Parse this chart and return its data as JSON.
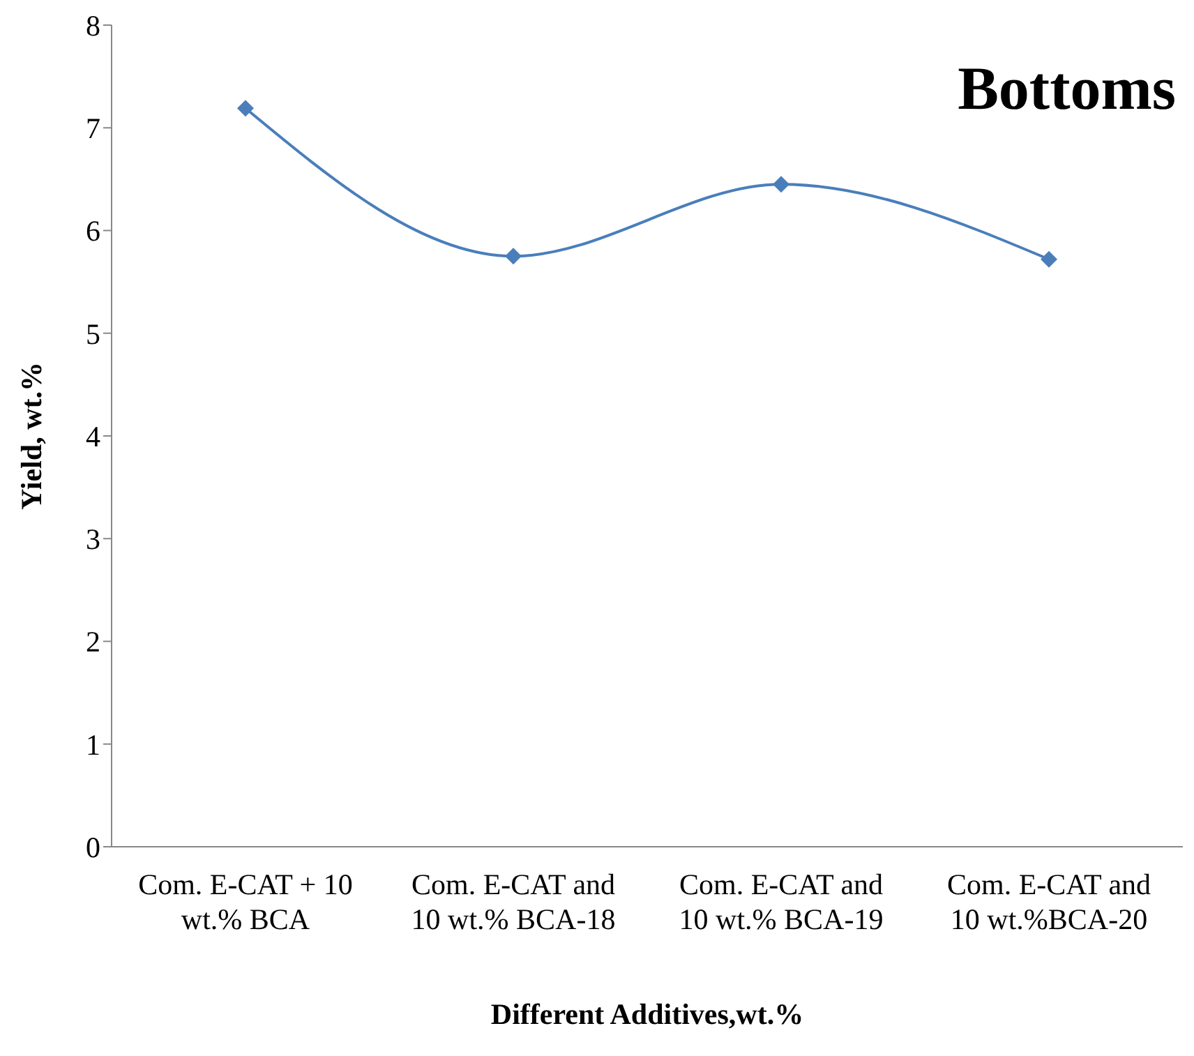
{
  "chart_data": {
    "type": "line",
    "title": "Bottoms",
    "xlabel": "Different Additives,wt.%",
    "ylabel": "Yield, wt.%",
    "categories": [
      "Com. E-CAT + 10 wt.% BCA",
      "Com. E-CAT and 10 wt.% BCA-18",
      "Com. E-CAT and 10 wt.% BCA-19",
      "Com. E-CAT and 10 wt.%BCA-20"
    ],
    "series": [
      {
        "color": "#4a7ebb",
        "values": [
          7.19,
          5.75,
          6.45,
          5.72
        ]
      }
    ],
    "ylim": [
      0,
      8
    ],
    "yticks": [
      0,
      1,
      2,
      3,
      4,
      5,
      6,
      7,
      8
    ],
    "grid": false,
    "legend": false,
    "marker": "diamond",
    "line_style": "solid"
  }
}
